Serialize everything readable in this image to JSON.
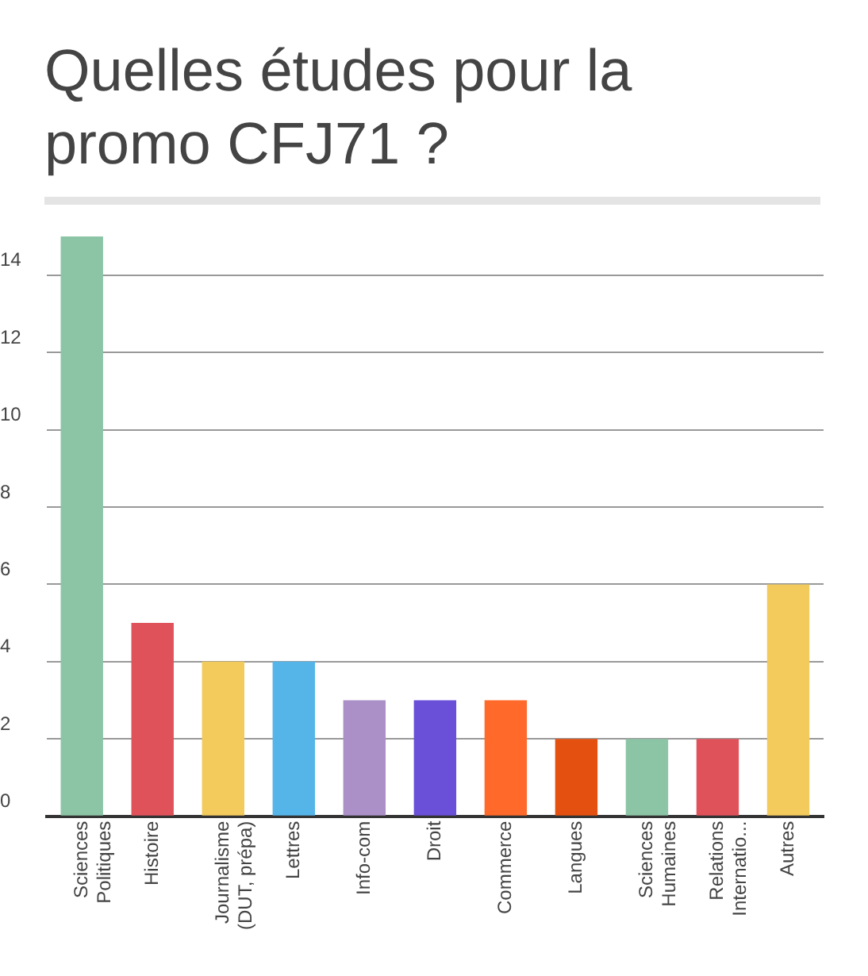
{
  "chart_data": {
    "type": "bar",
    "title": "Quelles études pour la promo CFJ71 ?",
    "categories": [
      "Sciences Politiques",
      "Histoire",
      "Journalisme (DUT, prépa)",
      "Lettres",
      "Info-com",
      "Droit",
      "Commerce",
      "Langues",
      "Sciences Humaines",
      "Relations Internatio...",
      "Autres"
    ],
    "values": [
      15,
      5,
      4,
      4,
      3,
      3,
      3,
      2,
      2,
      2,
      6
    ],
    "colors": [
      "#8cc5a6",
      "#e0525a",
      "#f2cb5c",
      "#56b5e8",
      "#ab90c8",
      "#6a4fd9",
      "#ff6a2a",
      "#e4500f",
      "#8cc5a6",
      "#e0525a",
      "#f2cb5c"
    ],
    "ylim": [
      0,
      15
    ],
    "yticks": [
      0,
      2,
      4,
      6,
      8,
      10,
      12,
      14
    ],
    "grid": "y",
    "legend": false
  }
}
